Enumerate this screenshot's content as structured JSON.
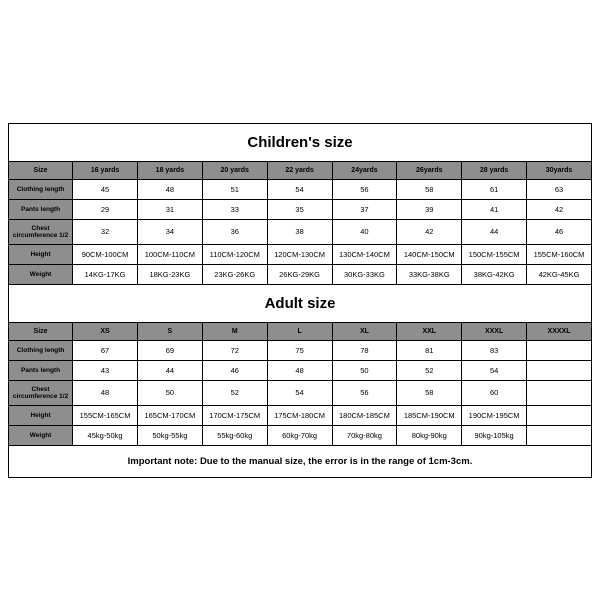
{
  "children": {
    "title": "Children's size",
    "header_label": "Size",
    "sizes": [
      "16 yards",
      "18 yards",
      "20 yards",
      "22 yards",
      "24yards",
      "26yards",
      "28 yards",
      "30yards"
    ],
    "rows": [
      {
        "label": "Clothing length",
        "vals": [
          "45",
          "48",
          "51",
          "54",
          "56",
          "58",
          "61",
          "63"
        ]
      },
      {
        "label": "Pants length",
        "vals": [
          "29",
          "31",
          "33",
          "35",
          "37",
          "39",
          "41",
          "42"
        ]
      },
      {
        "label": "Chest circumference 1/2",
        "vals": [
          "32",
          "34",
          "36",
          "38",
          "40",
          "42",
          "44",
          "46"
        ]
      },
      {
        "label": "Height",
        "vals": [
          "90CM-100CM",
          "100CM-110CM",
          "110CM-120CM",
          "120CM-130CM",
          "130CM-140CM",
          "140CM-150CM",
          "150CM-155CM",
          "155CM-160CM"
        ]
      },
      {
        "label": "Weight",
        "vals": [
          "14KG-17KG",
          "18KG-23KG",
          "23KG-26KG",
          "26KG-29KG",
          "30KG-33KG",
          "33KG-38KG",
          "38KG-42KG",
          "42KG-45KG"
        ]
      }
    ]
  },
  "adult": {
    "title": "Adult size",
    "header_label": "Size",
    "sizes": [
      "XS",
      "S",
      "M",
      "L",
      "XL",
      "XXL",
      "XXXL",
      "XXXXL"
    ],
    "rows": [
      {
        "label": "Clothing length",
        "vals": [
          "67",
          "69",
          "72",
          "75",
          "78",
          "81",
          "83",
          ""
        ]
      },
      {
        "label": "Pants length",
        "vals": [
          "43",
          "44",
          "46",
          "48",
          "50",
          "52",
          "54",
          ""
        ]
      },
      {
        "label": "Chest circumference 1/2",
        "vals": [
          "48",
          "50",
          "52",
          "54",
          "56",
          "58",
          "60",
          ""
        ]
      },
      {
        "label": "Height",
        "vals": [
          "155CM-165CM",
          "165CM-170CM",
          "170CM-175CM",
          "175CM-180CM",
          "180CM-185CM",
          "185CM-190CM",
          "190CM-195CM",
          ""
        ]
      },
      {
        "label": "Weight",
        "vals": [
          "45kg-50kg",
          "50kg-55kg",
          "55kg-60kg",
          "60kg-70kg",
          "70kg-80kg",
          "80kg-90kg",
          "90kg-105kg",
          ""
        ]
      }
    ]
  },
  "note": "Important note: Due to the manual size, the error is in the range of 1cm-3cm.",
  "style": {
    "border_color": "#000000",
    "header_bg": "#8e8e8e",
    "body_bg": "#ffffff",
    "title_fontsize": 15,
    "header_fontsize": 7,
    "cell_fontsize": 7.5,
    "note_fontsize": 9.5
  }
}
